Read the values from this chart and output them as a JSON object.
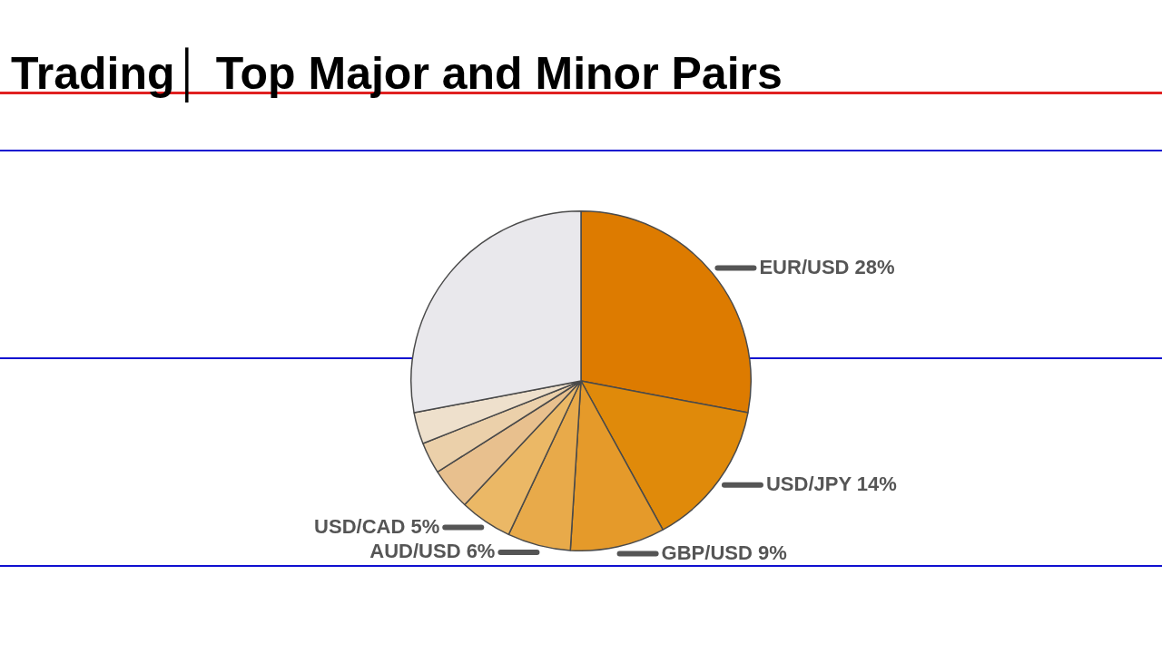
{
  "chart_data": {
    "type": "pie",
    "title": "Trading│ Top Major and Minor Pairs",
    "categories": [
      "EUR/USD",
      "USD/JPY",
      "GBP/USD",
      "AUD/USD",
      "USD/CAD",
      null,
      null,
      null,
      null
    ],
    "values": [
      28,
      14,
      9,
      6,
      5,
      4,
      3,
      3,
      28
    ],
    "value_labels": [
      "28%",
      "14%",
      "9%",
      "6%",
      "5%",
      null,
      null,
      null,
      null
    ],
    "colors": [
      "#dd7b00",
      "#e08a0a",
      "#e59a2a",
      "#e8aa4a",
      "#ebb866",
      "#e8c08e",
      "#ebd0aa",
      "#eee0cc",
      "#e9e8ec"
    ],
    "legend": false
  }
}
